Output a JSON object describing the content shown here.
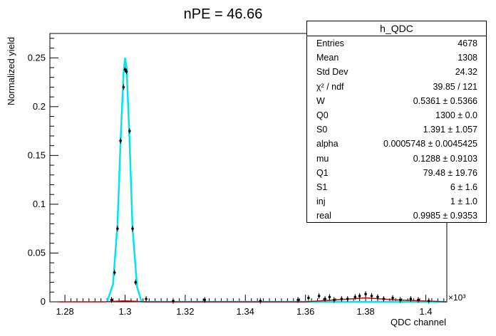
{
  "chart_data": {
    "type": "scatter",
    "title": "nPE = 46.66",
    "xlabel": "QDC channel",
    "ylabel": "Normalized yield",
    "x_multiplier": "×10³",
    "xlim": [
      1.275,
      1.407
    ],
    "ylim": [
      0,
      0.275
    ],
    "x_ticks": [
      "1.28",
      "1.3",
      "1.32",
      "1.34",
      "1.36",
      "1.38",
      "1.4"
    ],
    "y_ticks": [
      "0",
      "0.05",
      "0.1",
      "0.15",
      "0.2",
      "0.25"
    ],
    "x_tick_values": [
      1.28,
      1.3,
      1.32,
      1.34,
      1.36,
      1.38,
      1.4
    ],
    "y_tick_values": [
      0,
      0.05,
      0.1,
      0.15,
      0.2,
      0.25
    ],
    "series": [
      {
        "type": "points",
        "color": "#000000",
        "x": [
          1.2955,
          1.2965,
          1.2975,
          1.2985,
          1.2995,
          1.3,
          1.3005,
          1.3015,
          1.3025,
          1.3035,
          1.307,
          1.316,
          1.3265,
          1.345,
          1.3575,
          1.361,
          1.3645,
          1.3665,
          1.368,
          1.3695,
          1.372,
          1.374,
          1.3765,
          1.378,
          1.38,
          1.382,
          1.384,
          1.386,
          1.389,
          1.3915,
          1.395,
          1.3975,
          1.401
        ],
        "y": [
          0.002,
          0.03,
          0.075,
          0.165,
          0.22,
          0.238,
          0.236,
          0.175,
          0.075,
          0.02,
          0.003,
          0.001,
          0.002,
          0.001,
          0.002,
          0.004,
          0.006,
          0.003,
          0.005,
          0.002,
          0.003,
          0.003,
          0.005,
          0.006,
          0.008,
          0.006,
          0.005,
          0.003,
          0.004,
          0.002,
          0.003,
          0.002,
          0.001
        ]
      },
      {
        "type": "line",
        "color": "#00e5ee",
        "x": [
          1.294,
          1.296,
          1.2975,
          1.2985,
          1.2995,
          1.3,
          1.3005,
          1.3015,
          1.3025,
          1.304,
          1.3055,
          1.407
        ],
        "y": [
          0,
          0.018,
          0.08,
          0.165,
          0.235,
          0.25,
          0.24,
          0.165,
          0.075,
          0.015,
          0,
          0
        ]
      },
      {
        "type": "line",
        "color": "#cc0000",
        "x": [
          1.278,
          1.293,
          1.3,
          1.307,
          1.36,
          1.37,
          1.38,
          1.39,
          1.407
        ],
        "y": [
          0,
          0,
          0.001,
          0,
          0,
          0.002,
          0.004,
          0.002,
          0
        ]
      }
    ],
    "stats": {
      "title": "h_QDC",
      "rows": [
        {
          "label": "Entries",
          "value": "4678"
        },
        {
          "label": "Mean",
          "value": "1308"
        },
        {
          "label": "Std Dev",
          "value": "24.32"
        },
        {
          "label": "χ² / ndf",
          "value": "39.85 / 121"
        },
        {
          "label": "W",
          "value": "0.5361 ± 0.5366"
        },
        {
          "label": "Q0",
          "value": "1300 ± 0.0"
        },
        {
          "label": "S0",
          "value": "1.391 ± 1.057"
        },
        {
          "label": "alpha",
          "value": "0.0005748 ± 0.0045425"
        },
        {
          "label": "mu",
          "value": "0.1288 ± 0.9103"
        },
        {
          "label": "Q1",
          "value": "79.48 ± 19.76"
        },
        {
          "label": "S1",
          "value": "6 ± 1.6"
        },
        {
          "label": "inj",
          "value": "1 ± 1.0"
        },
        {
          "label": "real",
          "value": "0.9985 ± 0.9353"
        }
      ]
    }
  }
}
